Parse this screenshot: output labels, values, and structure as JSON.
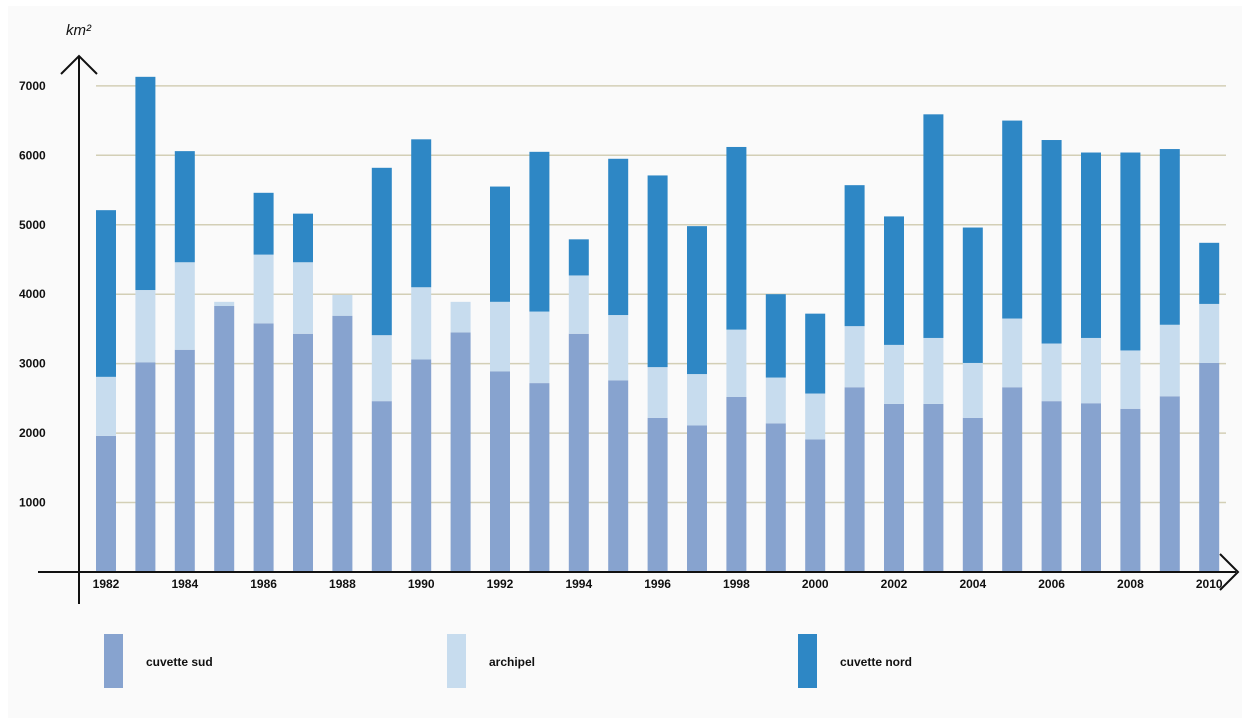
{
  "chart_data": {
    "type": "bar",
    "stacked": true,
    "y_unit_label": "km²",
    "ylim": [
      0,
      7000
    ],
    "yticks": [
      1000,
      2000,
      3000,
      4000,
      5000,
      6000,
      7000
    ],
    "grid": "horizontal",
    "legend_position": "bottom",
    "categories": [
      "1982",
      "1983",
      "1984",
      "1985",
      "1986",
      "1987",
      "1988",
      "1989",
      "1990",
      "1991",
      "1992",
      "1993",
      "1994",
      "1995",
      "1996",
      "1997",
      "1998",
      "1999",
      "2000",
      "2001",
      "2002",
      "2003",
      "2004",
      "2005",
      "2006",
      "2007",
      "2008",
      "2009",
      "2010"
    ],
    "x_tick_labels": [
      "1982",
      "1984",
      "1986",
      "1988",
      "1990",
      "1992",
      "1994",
      "1996",
      "1998",
      "2000",
      "2002",
      "2004",
      "2006",
      "2008",
      "2010"
    ],
    "series": [
      {
        "name": "cuvette sud",
        "color": "#87a3cf",
        "values": [
          1960,
          3020,
          3200,
          3830,
          3580,
          3430,
          3690,
          2460,
          3060,
          3450,
          2890,
          2720,
          3430,
          2760,
          2220,
          2110,
          2520,
          2140,
          1910,
          2660,
          2420,
          2420,
          2220,
          2660,
          2460,
          2430,
          2350,
          2530,
          3010
        ]
      },
      {
        "name": "archipel",
        "color": "#c7dcee",
        "values": [
          850,
          1040,
          1260,
          60,
          990,
          1030,
          300,
          950,
          1040,
          440,
          1000,
          1030,
          840,
          940,
          730,
          740,
          970,
          660,
          660,
          880,
          850,
          950,
          790,
          990,
          830,
          940,
          840,
          1030,
          850
        ]
      },
      {
        "name": "cuvette nord",
        "color": "#2e87c5",
        "values": [
          2400,
          3070,
          1600,
          0,
          890,
          700,
          0,
          2410,
          2130,
          0,
          1660,
          2300,
          520,
          2250,
          2760,
          2130,
          2630,
          1200,
          1150,
          2030,
          1850,
          3220,
          1950,
          2850,
          2930,
          2670,
          2850,
          2530,
          880
        ]
      }
    ]
  }
}
